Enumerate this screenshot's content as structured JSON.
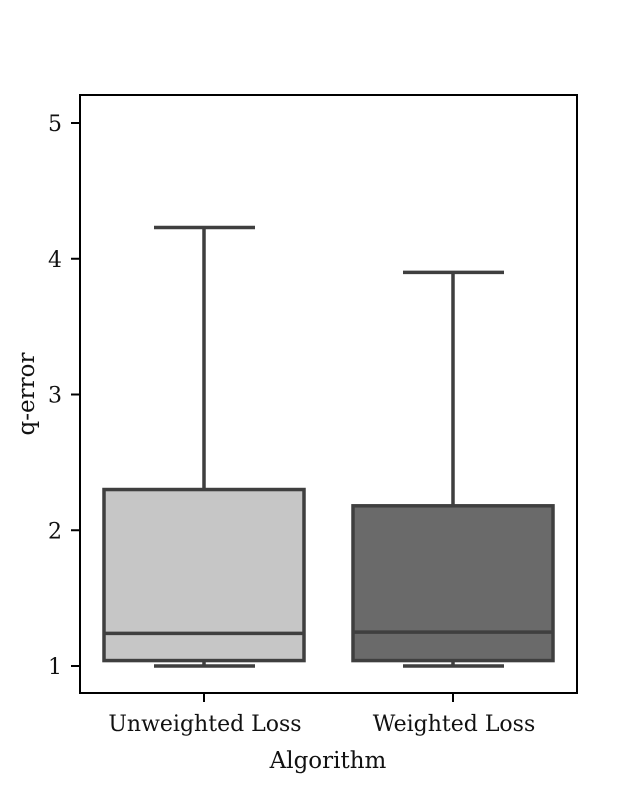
{
  "chart_data": {
    "type": "box",
    "title": "",
    "xlabel": "Algorithm",
    "ylabel": "q-error",
    "categories": [
      "Unweighted Loss",
      "Weighted Loss"
    ],
    "ylim": [
      0.8,
      5.2
    ],
    "yticks": [
      1,
      2,
      3,
      4,
      5
    ],
    "ytick_labels": [
      "1",
      "2",
      "3",
      "4",
      "5"
    ],
    "grid": false,
    "series": [
      {
        "name": "Unweighted Loss",
        "whisker_low": 1.0,
        "q1": 1.04,
        "median": 1.24,
        "q3": 2.3,
        "whisker_high": 4.23,
        "color": "#c6c6c6"
      },
      {
        "name": "Weighted Loss",
        "whisker_low": 1.0,
        "q1": 1.04,
        "median": 1.25,
        "q3": 2.18,
        "whisker_high": 3.9,
        "color": "#6a6a6a"
      }
    ],
    "edge_color": "#3f3f3f"
  },
  "axes": {
    "xlabel": "Algorithm",
    "ylabel": "q-error",
    "xtick_labels": [
      "Unweighted Loss",
      "Weighted Loss"
    ],
    "ytick_labels": [
      "1",
      "2",
      "3",
      "4",
      "5"
    ]
  }
}
